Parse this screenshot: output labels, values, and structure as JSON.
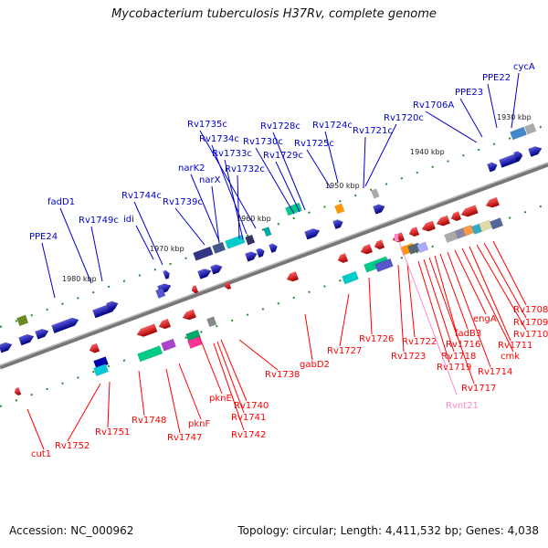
{
  "title": "Mycobacterium tuberculosis H37Rv, complete genome",
  "footer": {
    "accession": "Accession: NC_000962",
    "summary": "Topology: circular; Length: 4,411,532 bp; Genes: 4,038"
  },
  "colors": {
    "forward": "#0000cc",
    "reverse": "#ff0000",
    "rna": "#ff88cc",
    "backbone": "#888888"
  },
  "ticks": [
    "1930 kbp",
    "1940 kbp",
    "1950 kbp",
    "1960 kbp",
    "1970 kbp",
    "1980 kbp"
  ],
  "top_labels": [
    "cycA",
    "PPE22",
    "PPE23",
    "Rv1706A",
    "Rv1720c",
    "Rv1721c",
    "Rv1724c",
    "Rv1725c",
    "Rv1728c",
    "Rv1729c",
    "Rv1730c",
    "Rv1735c",
    "Rv1734c",
    "Rv1733c",
    "Rv1732c",
    "narK2",
    "narX",
    "Rv1739c",
    "Rv1744c",
    "idi",
    "Rv1749c",
    "fadD1",
    "PPE24"
  ],
  "bottom_labels": [
    "Rv1708",
    "Rv1709",
    "Rv1710",
    "Rv1711",
    "cmk",
    "engA",
    "Rv1714",
    "fadB3",
    "Rv1716",
    "Rv1717",
    "Rv1718",
    "Rv1719",
    "Rv1722",
    "Rv1723",
    "Rv1726",
    "Rv1727",
    "gabD2",
    "Rv1738",
    "Rv1740",
    "Rv1741",
    "Rv1742",
    "pknE",
    "pknF",
    "Rv1747",
    "Rv1748",
    "Rv1751",
    "Rv1752",
    "cut1"
  ],
  "rna_labels": [
    "Rvnt21"
  ]
}
